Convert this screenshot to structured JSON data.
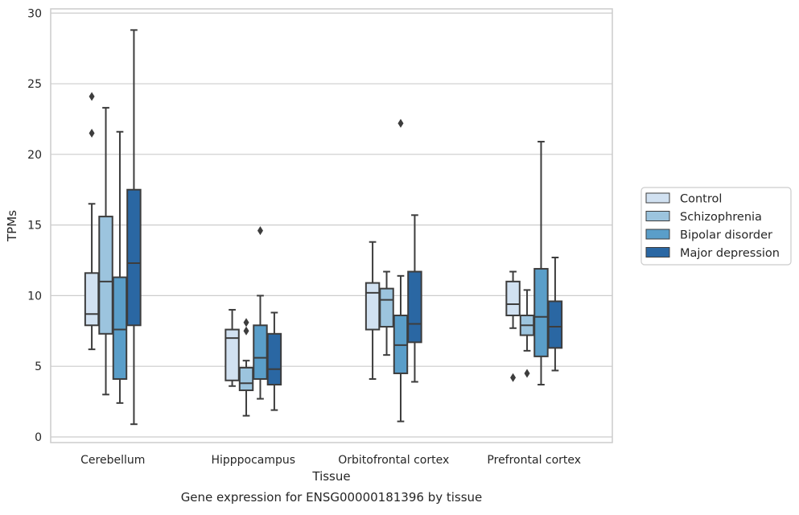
{
  "caption": "Gene expression for ENSG00000181396 by tissue",
  "chart_data": {
    "type": "box",
    "xlabel": "Tissue",
    "ylabel": "TPMs",
    "ylim": [
      -0.4,
      30.3
    ],
    "yticks": [
      0,
      5,
      10,
      15,
      20,
      25,
      30
    ],
    "grid": "horizontal",
    "legend_position": "right",
    "categories": [
      "Cerebellum",
      "Hipppocampus",
      "Orbitofrontal cortex",
      "Prefrontal cortex"
    ],
    "series": [
      {
        "name": "Control",
        "color": "#d1e1f1",
        "boxes": [
          {
            "whislo": 6.2,
            "q1": 7.9,
            "med": 8.7,
            "q3": 11.6,
            "whishi": 16.5,
            "fliers": [
              21.5,
              24.1
            ]
          },
          {
            "whislo": 3.6,
            "q1": 4.0,
            "med": 7.0,
            "q3": 7.6,
            "whishi": 9.0,
            "fliers": []
          },
          {
            "whislo": 4.1,
            "q1": 7.6,
            "med": 10.2,
            "q3": 10.9,
            "whishi": 13.8,
            "fliers": []
          },
          {
            "whislo": 7.7,
            "q1": 8.6,
            "med": 9.4,
            "q3": 11.0,
            "whishi": 11.7,
            "fliers": [
              4.2
            ]
          }
        ]
      },
      {
        "name": "Schizophrenia",
        "color": "#9cc4de",
        "boxes": [
          {
            "whislo": 3.0,
            "q1": 7.3,
            "med": 11.0,
            "q3": 15.6,
            "whishi": 23.3,
            "fliers": []
          },
          {
            "whislo": 1.5,
            "q1": 3.3,
            "med": 3.8,
            "q3": 4.9,
            "whishi": 5.4,
            "fliers": [
              7.5,
              8.1
            ]
          },
          {
            "whislo": 5.8,
            "q1": 7.8,
            "med": 9.7,
            "q3": 10.5,
            "whishi": 11.7,
            "fliers": []
          },
          {
            "whislo": 6.1,
            "q1": 7.2,
            "med": 7.9,
            "q3": 8.6,
            "whishi": 10.4,
            "fliers": [
              4.5
            ]
          }
        ]
      },
      {
        "name": "Bipolar disorder",
        "color": "#5a9ec9",
        "boxes": [
          {
            "whislo": 2.4,
            "q1": 4.1,
            "med": 7.6,
            "q3": 11.3,
            "whishi": 21.6,
            "fliers": []
          },
          {
            "whislo": 2.7,
            "q1": 4.1,
            "med": 5.6,
            "q3": 7.9,
            "whishi": 10.0,
            "fliers": [
              14.6
            ]
          },
          {
            "whislo": 1.1,
            "q1": 4.5,
            "med": 6.5,
            "q3": 8.6,
            "whishi": 11.4,
            "fliers": [
              22.2
            ]
          },
          {
            "whislo": 3.7,
            "q1": 5.7,
            "med": 8.5,
            "q3": 11.9,
            "whishi": 20.9,
            "fliers": []
          }
        ]
      },
      {
        "name": "Major depression",
        "color": "#2a67a3",
        "boxes": [
          {
            "whislo": 0.9,
            "q1": 7.9,
            "med": 12.3,
            "q3": 17.5,
            "whishi": 28.8,
            "fliers": []
          },
          {
            "whislo": 1.9,
            "q1": 3.7,
            "med": 4.8,
            "q3": 7.3,
            "whishi": 8.8,
            "fliers": []
          },
          {
            "whislo": 3.9,
            "q1": 6.7,
            "med": 8.0,
            "q3": 11.7,
            "whishi": 15.7,
            "fliers": []
          },
          {
            "whislo": 4.7,
            "q1": 6.3,
            "med": 7.8,
            "q3": 9.6,
            "whishi": 12.7,
            "fliers": []
          }
        ]
      }
    ]
  }
}
